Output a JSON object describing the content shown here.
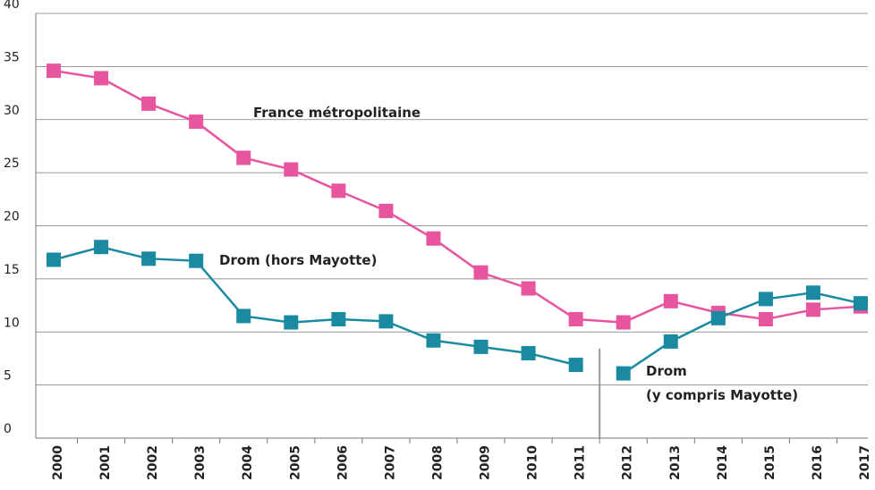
{
  "chart_data": {
    "type": "line",
    "categories": [
      "2000",
      "2001",
      "2002",
      "2003",
      "2004",
      "2005",
      "2006",
      "2007",
      "2008",
      "2009",
      "2010",
      "2011",
      "2012",
      "2013",
      "2014",
      "2015",
      "2016",
      "2017"
    ],
    "series": [
      {
        "name": "France métropolitaine",
        "color": "#e8559f",
        "values": [
          34.6,
          33.9,
          31.5,
          29.8,
          26.4,
          25.3,
          23.3,
          21.4,
          18.8,
          15.6,
          14.1,
          11.2,
          10.9,
          12.9,
          11.8,
          11.2,
          12.1,
          12.4
        ]
      },
      {
        "name": "Drom (hors Mayotte)",
        "color": "#1a8aa0",
        "values": [
          16.8,
          18.0,
          16.9,
          16.7,
          11.5,
          10.9,
          11.2,
          11.0,
          9.2,
          8.6,
          8.0,
          6.9,
          null,
          null,
          null,
          null,
          null,
          null
        ]
      },
      {
        "name": "Drom\n(y compris Mayotte)",
        "color": "#1a8aa0",
        "values": [
          null,
          null,
          null,
          null,
          null,
          null,
          null,
          null,
          null,
          null,
          null,
          null,
          6.1,
          9.1,
          11.3,
          13.1,
          13.7,
          12.7
        ]
      }
    ],
    "ylim": [
      0,
      40
    ],
    "yticks": [
      0,
      5,
      10,
      15,
      20,
      25,
      30,
      35,
      40
    ],
    "grid": true
  }
}
